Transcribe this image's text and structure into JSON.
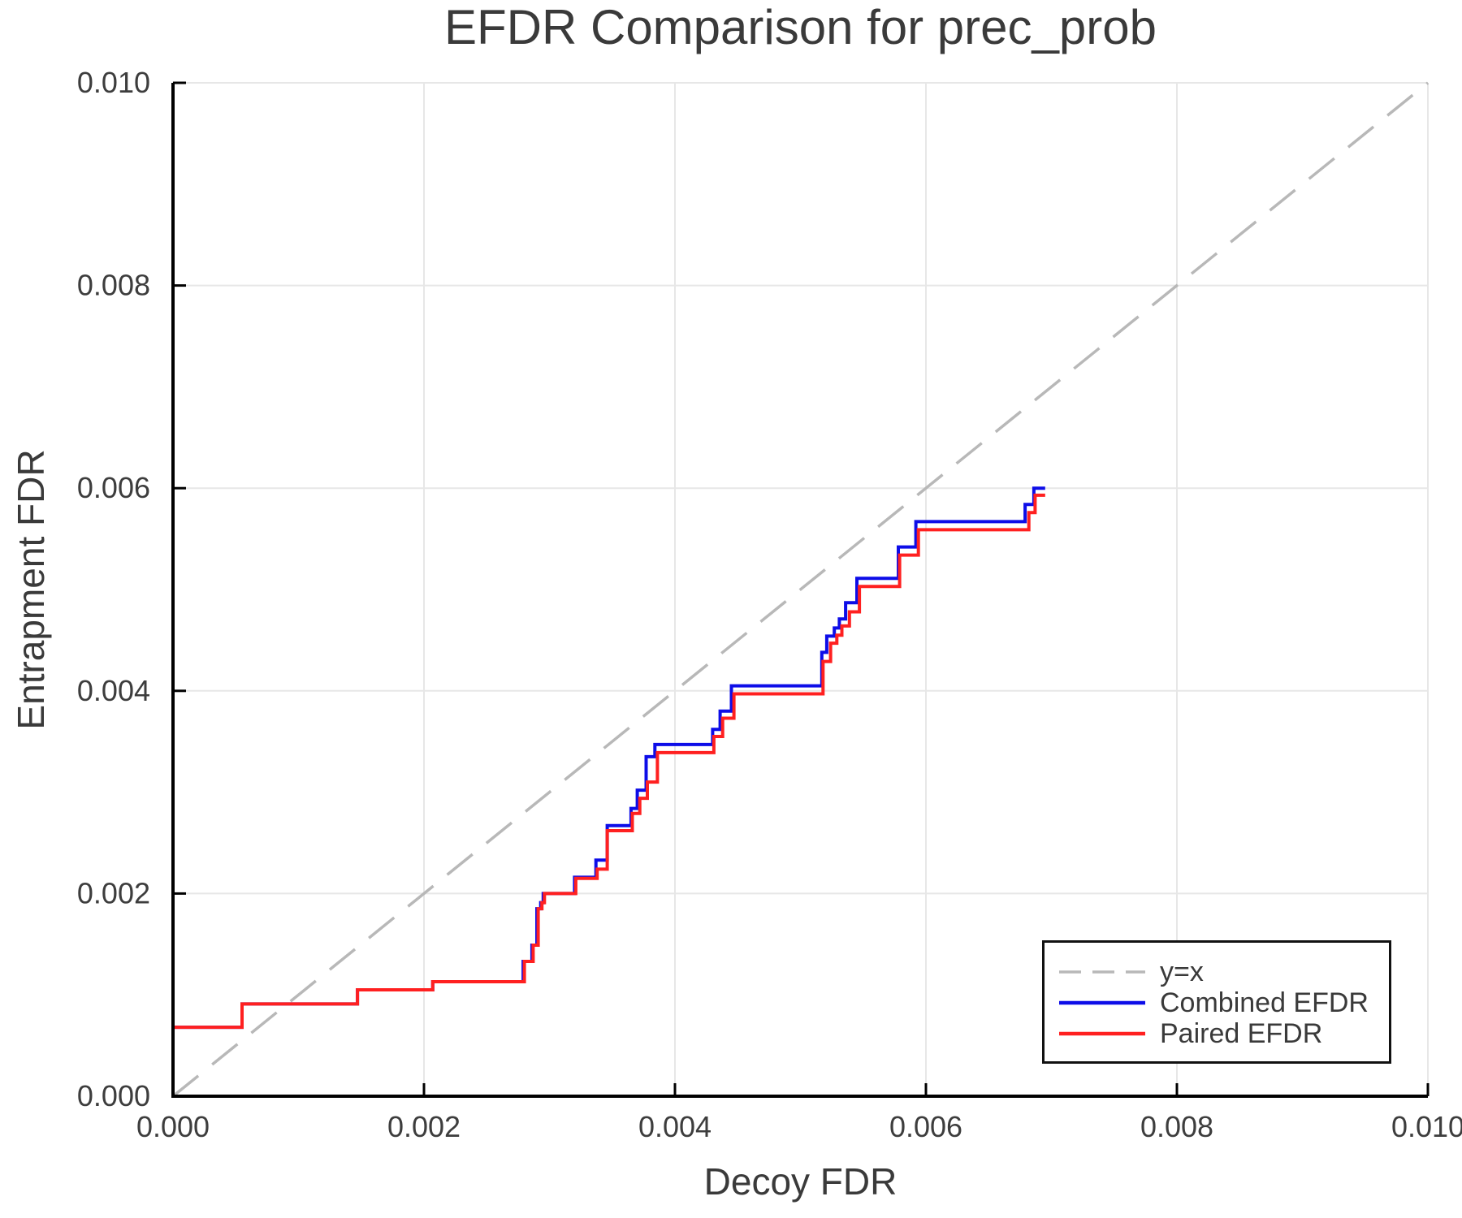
{
  "chart_data": {
    "type": "line",
    "title": "EFDR Comparison for prec_prob",
    "xlabel": "Decoy FDR",
    "ylabel": "Entrapment FDR",
    "xlim": [
      0.0,
      0.01
    ],
    "ylim": [
      0.0,
      0.01
    ],
    "grid": true,
    "x_ticks": {
      "values": [
        0.0,
        0.002,
        0.004,
        0.006,
        0.008,
        0.01
      ],
      "labels": [
        "0.000",
        "0.002",
        "0.004",
        "0.006",
        "0.008",
        "0.010"
      ]
    },
    "y_ticks": {
      "values": [
        0.0,
        0.002,
        0.004,
        0.006,
        0.008,
        0.01
      ],
      "labels": [
        "0.000",
        "0.002",
        "0.004",
        "0.006",
        "0.008",
        "0.010"
      ]
    },
    "reference_line": {
      "label": "y=x",
      "style": "dashed",
      "color": "#b8b8b8",
      "from": [
        0.0,
        0.0
      ],
      "to": [
        0.01,
        0.01
      ]
    },
    "legend": {
      "position": "lower right",
      "items": [
        {
          "label": "y=x",
          "color": "#b8b8b8",
          "dash": true
        },
        {
          "label": "Combined EFDR",
          "color": "#0d0de8",
          "dash": false
        },
        {
          "label": "Paired EFDR",
          "color": "#ff2020",
          "dash": false
        }
      ]
    },
    "series": [
      {
        "name": "Combined EFDR",
        "color": "#0d0de8",
        "points": [
          [
            0.0,
            0.00028
          ],
          [
            0.0,
            0.00068
          ],
          [
            0.00055,
            0.00068
          ],
          [
            0.00055,
            0.00091
          ],
          [
            0.00147,
            0.00091
          ],
          [
            0.00147,
            0.00105
          ],
          [
            0.00207,
            0.00105
          ],
          [
            0.00207,
            0.00113
          ],
          [
            0.00279,
            0.00113
          ],
          [
            0.00279,
            0.00133
          ],
          [
            0.00286,
            0.00133
          ],
          [
            0.00286,
            0.00149
          ],
          [
            0.0029,
            0.00149
          ],
          [
            0.0029,
            0.00185
          ],
          [
            0.00293,
            0.00185
          ],
          [
            0.00293,
            0.00191
          ],
          [
            0.00295,
            0.00191
          ],
          [
            0.00295,
            0.002
          ],
          [
            0.0032,
            0.002
          ],
          [
            0.0032,
            0.00216
          ],
          [
            0.00337,
            0.00216
          ],
          [
            0.00337,
            0.00233
          ],
          [
            0.00346,
            0.00233
          ],
          [
            0.00346,
            0.00267
          ],
          [
            0.00365,
            0.00267
          ],
          [
            0.00365,
            0.00284
          ],
          [
            0.0037,
            0.00284
          ],
          [
            0.0037,
            0.00302
          ],
          [
            0.00377,
            0.00302
          ],
          [
            0.00377,
            0.00335
          ],
          [
            0.00384,
            0.00335
          ],
          [
            0.00384,
            0.00347
          ],
          [
            0.0043,
            0.00347
          ],
          [
            0.0043,
            0.00362
          ],
          [
            0.00436,
            0.00362
          ],
          [
            0.00436,
            0.0038
          ],
          [
            0.00445,
            0.0038
          ],
          [
            0.00445,
            0.00405
          ],
          [
            0.00517,
            0.00405
          ],
          [
            0.00517,
            0.00438
          ],
          [
            0.00521,
            0.00438
          ],
          [
            0.00521,
            0.00454
          ],
          [
            0.00527,
            0.00454
          ],
          [
            0.00527,
            0.00462
          ],
          [
            0.00531,
            0.00462
          ],
          [
            0.00531,
            0.00471
          ],
          [
            0.00536,
            0.00471
          ],
          [
            0.00536,
            0.00487
          ],
          [
            0.00545,
            0.00487
          ],
          [
            0.00545,
            0.00511
          ],
          [
            0.00578,
            0.00511
          ],
          [
            0.00578,
            0.00542
          ],
          [
            0.00592,
            0.00542
          ],
          [
            0.00592,
            0.00567
          ],
          [
            0.00679,
            0.00567
          ],
          [
            0.00679,
            0.00584
          ],
          [
            0.00686,
            0.00584
          ],
          [
            0.00686,
            0.006
          ],
          [
            0.00695,
            0.006
          ]
        ]
      },
      {
        "name": "Paired EFDR",
        "color": "#ff2020",
        "points": [
          [
            0.0,
            0.00028
          ],
          [
            0.0,
            0.00068
          ],
          [
            0.00055,
            0.00068
          ],
          [
            0.00055,
            0.00091
          ],
          [
            0.00147,
            0.00091
          ],
          [
            0.00147,
            0.00105
          ],
          [
            0.00207,
            0.00105
          ],
          [
            0.00207,
            0.00113
          ],
          [
            0.0028,
            0.00113
          ],
          [
            0.0028,
            0.00133
          ],
          [
            0.00287,
            0.00133
          ],
          [
            0.00287,
            0.00149
          ],
          [
            0.00291,
            0.00149
          ],
          [
            0.00291,
            0.00185
          ],
          [
            0.00294,
            0.00185
          ],
          [
            0.00294,
            0.00191
          ],
          [
            0.00296,
            0.00191
          ],
          [
            0.00296,
            0.002
          ],
          [
            0.00321,
            0.002
          ],
          [
            0.00321,
            0.00215
          ],
          [
            0.00338,
            0.00215
          ],
          [
            0.00338,
            0.00224
          ],
          [
            0.00346,
            0.00224
          ],
          [
            0.00346,
            0.00262
          ],
          [
            0.00366,
            0.00262
          ],
          [
            0.00366,
            0.00279
          ],
          [
            0.00372,
            0.00279
          ],
          [
            0.00372,
            0.00294
          ],
          [
            0.00378,
            0.00294
          ],
          [
            0.00378,
            0.0031
          ],
          [
            0.00386,
            0.0031
          ],
          [
            0.00386,
            0.00339
          ],
          [
            0.00431,
            0.00339
          ],
          [
            0.00431,
            0.00355
          ],
          [
            0.00438,
            0.00355
          ],
          [
            0.00438,
            0.00373
          ],
          [
            0.00447,
            0.00373
          ],
          [
            0.00447,
            0.00397
          ],
          [
            0.00518,
            0.00397
          ],
          [
            0.00518,
            0.00429
          ],
          [
            0.00524,
            0.00429
          ],
          [
            0.00524,
            0.00447
          ],
          [
            0.00529,
            0.00447
          ],
          [
            0.00529,
            0.00455
          ],
          [
            0.00533,
            0.00455
          ],
          [
            0.00533,
            0.00464
          ],
          [
            0.00539,
            0.00464
          ],
          [
            0.00539,
            0.00478
          ],
          [
            0.00547,
            0.00478
          ],
          [
            0.00547,
            0.00503
          ],
          [
            0.00579,
            0.00503
          ],
          [
            0.00579,
            0.00534
          ],
          [
            0.00594,
            0.00534
          ],
          [
            0.00594,
            0.00559
          ],
          [
            0.00682,
            0.00559
          ],
          [
            0.00682,
            0.00576
          ],
          [
            0.00687,
            0.00576
          ],
          [
            0.00687,
            0.00593
          ],
          [
            0.00695,
            0.00593
          ]
        ]
      }
    ]
  }
}
